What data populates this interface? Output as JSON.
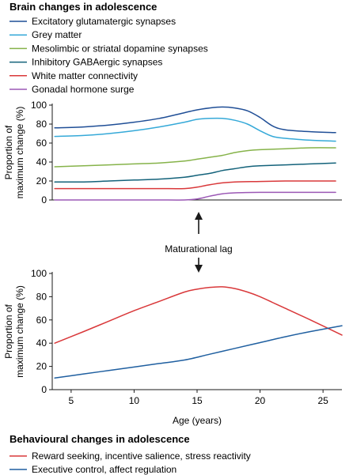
{
  "top_legend": {
    "title": "Brain changes in adolescence",
    "items": [
      {
        "label": "Excitatory glutamatergic synapses",
        "color": "#1f4e96"
      },
      {
        "label": "Grey matter",
        "color": "#35a9d8"
      },
      {
        "label": "Mesolimbic or striatal dopamine synapses",
        "color": "#86b34a"
      },
      {
        "label": "Inhibitory GABAergic synapses",
        "color": "#13627a"
      },
      {
        "label": "White matter connectivity",
        "color": "#d9383a"
      },
      {
        "label": "Gonadal hormone surge",
        "color": "#9b58b5"
      }
    ]
  },
  "bottom_legend": {
    "title": "Behavioural changes in adolescence",
    "items": [
      {
        "label": "Reward seeking, incentive salience, stress reactivity",
        "color": "#d9383a"
      },
      {
        "label": "Executive control, affect regulation",
        "color": "#1f5fa0"
      }
    ]
  },
  "lag_label": "Maturational lag",
  "chart_data": [
    {
      "type": "line",
      "ylabel": "Proportion of maximum change (%)",
      "ylabel_lines": [
        "Proportion of",
        "maximum change (%)"
      ],
      "xlim": [
        3.5,
        26.5
      ],
      "ylim": [
        0,
        100
      ],
      "yticks": [
        0,
        20,
        40,
        60,
        80,
        100
      ],
      "grid": false,
      "series": [
        {
          "name": "Excitatory glutamatergic synapses",
          "color": "#1f4e96",
          "x": [
            3.7,
            6,
            8,
            10,
            12,
            14,
            15,
            16,
            17,
            18,
            19,
            20,
            21,
            22,
            24,
            26
          ],
          "y": [
            76,
            77,
            79,
            82,
            86,
            92,
            95,
            97,
            98,
            97,
            94,
            87,
            78,
            74,
            72,
            71
          ]
        },
        {
          "name": "Grey matter",
          "color": "#35a9d8",
          "x": [
            3.7,
            6,
            8,
            10,
            12,
            14,
            15,
            16,
            17,
            18,
            19,
            20,
            21,
            22,
            24,
            26
          ],
          "y": [
            67,
            68,
            70,
            73,
            77,
            82,
            85,
            86,
            86,
            84,
            80,
            73,
            67,
            65,
            63,
            62
          ]
        },
        {
          "name": "Mesolimbic or striatal dopamine synapses",
          "color": "#86b34a",
          "x": [
            3.7,
            6,
            8,
            10,
            12,
            14,
            15,
            16,
            17,
            18,
            19,
            20,
            22,
            24,
            26
          ],
          "y": [
            35,
            36,
            37,
            38,
            39,
            41,
            43,
            45,
            47,
            50,
            52,
            53,
            54,
            55,
            55
          ]
        },
        {
          "name": "Inhibitory GABAergic synapses",
          "color": "#13627a",
          "x": [
            3.7,
            6,
            8,
            10,
            12,
            14,
            15,
            16,
            17,
            18,
            19,
            20,
            22,
            24,
            26
          ],
          "y": [
            19,
            19,
            20,
            21,
            22,
            24,
            26,
            28,
            31,
            33,
            35,
            36,
            37,
            38,
            39
          ]
        },
        {
          "name": "White matter connectivity",
          "color": "#d9383a",
          "x": [
            3.7,
            6,
            8,
            10,
            12,
            14,
            15,
            16,
            17,
            18,
            20,
            22,
            24,
            26
          ],
          "y": [
            12,
            12,
            12,
            12,
            12,
            12,
            13.5,
            16,
            18,
            19,
            19.5,
            20,
            20,
            20
          ]
        },
        {
          "name": "Gonadal hormone surge",
          "color": "#9b58b5",
          "x": [
            3.7,
            6,
            8,
            10,
            12,
            14,
            15,
            16,
            17,
            18,
            20,
            22,
            24,
            26
          ],
          "y": [
            0,
            0,
            0,
            0,
            0,
            0,
            1,
            4,
            6.5,
            7.5,
            8,
            8,
            8,
            8
          ]
        }
      ]
    },
    {
      "type": "line",
      "xlabel": "Age (years)",
      "ylabel": "Proportion of maximum change (%)",
      "ylabel_lines": [
        "Proportion of",
        "maximum change (%)"
      ],
      "xlim": [
        3.5,
        26.5
      ],
      "ylim": [
        0,
        100
      ],
      "xticks": [
        5,
        10,
        15,
        20,
        25
      ],
      "yticks": [
        0,
        20,
        40,
        60,
        80,
        100
      ],
      "grid": false,
      "series": [
        {
          "name": "Reward seeking, incentive salience, stress reactivity",
          "color": "#d9383a",
          "x": [
            3.7,
            6,
            8,
            10,
            12,
            14,
            15,
            16,
            17,
            18,
            19,
            20,
            21,
            22,
            24,
            26.5
          ],
          "y": [
            40,
            50,
            59,
            68,
            76,
            84,
            86.5,
            88,
            88.5,
            87,
            84,
            80,
            75,
            70,
            60,
            47
          ]
        },
        {
          "name": "Executive control, affect regulation",
          "color": "#1f5fa0",
          "x": [
            3.7,
            6,
            8,
            10,
            12,
            14,
            16,
            18,
            20,
            22,
            24,
            26.5
          ],
          "y": [
            10,
            13.5,
            16.5,
            19.5,
            22.5,
            25.5,
            30.5,
            35.5,
            40.5,
            45.5,
            50,
            55
          ]
        }
      ]
    }
  ]
}
